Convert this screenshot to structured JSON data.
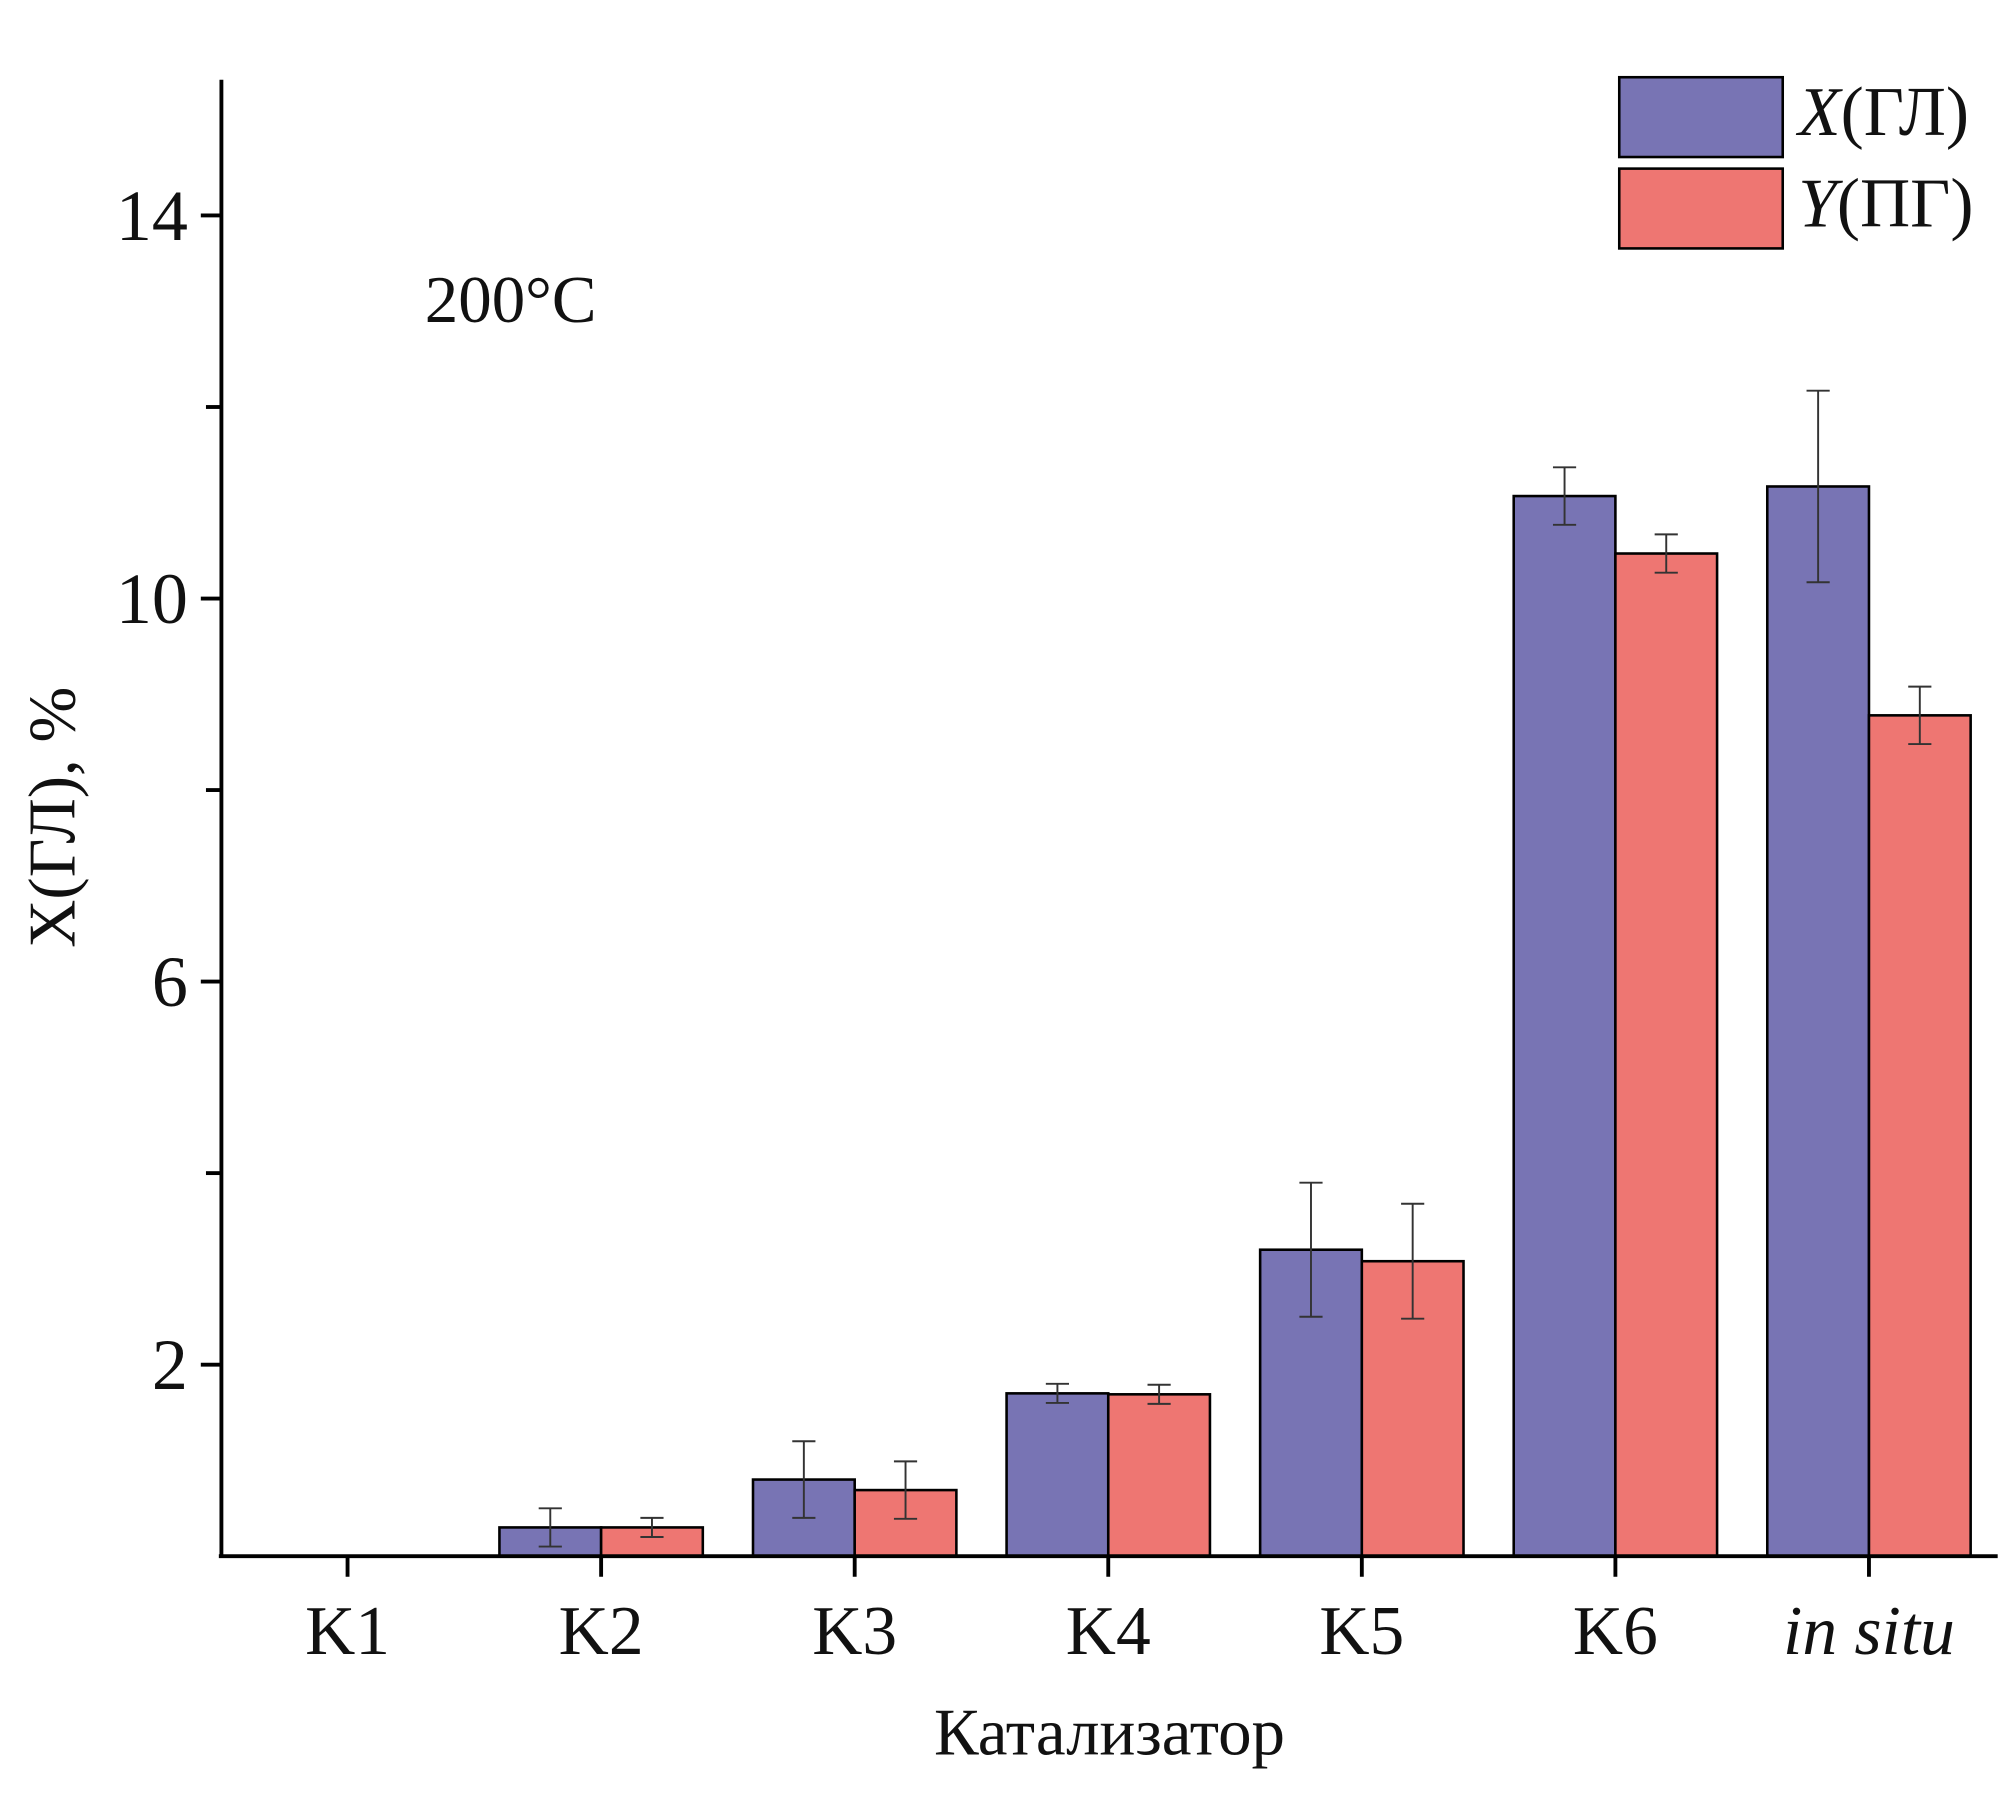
{
  "chart_data": {
    "type": "bar",
    "title": "",
    "annotation": "200°C",
    "xlabel": "Катализатор",
    "ylabel": "X(ГЛ), %",
    "ylim": [
      0,
      15.4
    ],
    "yticks_labeled": [
      2,
      6,
      10,
      14
    ],
    "yticks_minor": [
      4,
      8,
      12
    ],
    "grid": false,
    "legend_position": "top-right",
    "categories": [
      "K1",
      "K2",
      "K3",
      "K4",
      "K5",
      "K6",
      "in situ"
    ],
    "category_italic": [
      false,
      false,
      false,
      false,
      false,
      false,
      true
    ],
    "series": [
      {
        "name": "X(ГЛ)",
        "name_italic": "X",
        "name_rest": "(ГЛ)",
        "color": "#7874b4",
        "values": [
          0,
          0.3,
          0.8,
          1.7,
          3.2,
          11.07,
          11.17
        ],
        "errors": [
          0,
          0.2,
          0.4,
          0.1,
          0.7,
          0.3,
          1.0
        ]
      },
      {
        "name": "Y(ПГ)",
        "name_italic": "Y",
        "name_rest": "(ПГ)",
        "color": "#ee7672",
        "values": [
          0,
          0.3,
          0.69,
          1.69,
          3.08,
          10.47,
          8.78
        ],
        "errors": [
          0,
          0.1,
          0.3,
          0.1,
          0.6,
          0.2,
          0.3
        ]
      }
    ]
  }
}
